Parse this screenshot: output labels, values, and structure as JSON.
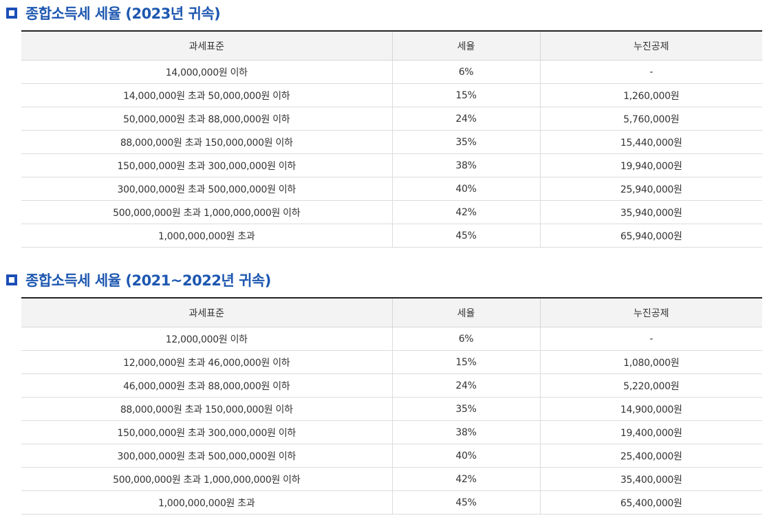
{
  "sections": [
    {
      "title": "종합소득세 세율 (2023년 귀속)",
      "headers": [
        "과세표준",
        "세율",
        "누진공제"
      ],
      "rows": [
        [
          "14,000,000원 이하",
          "6%",
          "-"
        ],
        [
          "14,000,000원 초과 50,000,000원 이하",
          "15%",
          "1,260,000원"
        ],
        [
          "50,000,000원 초과 88,000,000원 이하",
          "24%",
          "5,760,000원"
        ],
        [
          "88,000,000원 초과 150,000,000원 이하",
          "35%",
          "15,440,000원"
        ],
        [
          "150,000,000원 초과 300,000,000원 이하",
          "38%",
          "19,940,000원"
        ],
        [
          "300,000,000원 초과 500,000,000원 이하",
          "40%",
          "25,940,000원"
        ],
        [
          "500,000,000원 초과 1,000,000,000원 이하",
          "42%",
          "35,940,000원"
        ],
        [
          "1,000,000,000원 초과",
          "45%",
          "65,940,000원"
        ]
      ]
    },
    {
      "title": "종합소득세 세율 (2021~2022년 귀속)",
      "headers": [
        "과세표준",
        "세율",
        "누진공제"
      ],
      "rows": [
        [
          "12,000,000원 이하",
          "6%",
          "-"
        ],
        [
          "12,000,000원 초과 46,000,000원 이하",
          "15%",
          "1,080,000원"
        ],
        [
          "46,000,000원 초과 88,000,000원 이하",
          "24%",
          "5,220,000원"
        ],
        [
          "88,000,000원 초과 150,000,000원 이하",
          "35%",
          "14,900,000원"
        ],
        [
          "150,000,000원 초과 300,000,000원 이하",
          "38%",
          "19,400,000원"
        ],
        [
          "300,000,000원 초과 500,000,000원 이하",
          "40%",
          "25,400,000원"
        ],
        [
          "500,000,000원 초과 1,000,000,000원 이하",
          "42%",
          "35,400,000원"
        ],
        [
          "1,000,000,000원 초과",
          "45%",
          "65,400,000원"
        ]
      ]
    }
  ],
  "icons": {
    "heading_bullet": "square-bullet-icon"
  },
  "colors": {
    "heading_text": "#1d57b0",
    "bullet": "#1a4fb6",
    "header_bg": "#f3f3f3",
    "top_border": "#222222"
  }
}
